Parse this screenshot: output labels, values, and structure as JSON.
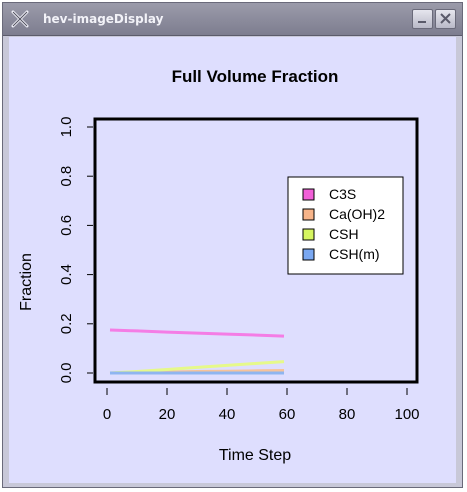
{
  "window": {
    "title": "hev-imageDisplay",
    "app_icon": "x-logo-icon",
    "minimize_icon": "minimize-icon",
    "close_icon": "close-icon"
  },
  "chart_data": {
    "type": "line",
    "title": "Full Volume Fraction",
    "xlabel": "Time Step",
    "ylabel": "Fraction",
    "xlim": [
      0,
      100
    ],
    "ylim": [
      0.0,
      1.0
    ],
    "x_ticks": [
      "0",
      "20",
      "40",
      "60",
      "80",
      "100"
    ],
    "y_ticks": [
      "0.0",
      "0.2",
      "0.4",
      "0.6",
      "0.8",
      "1.0"
    ],
    "legend_placement": "right",
    "grid": false,
    "background": "#dedefe",
    "x": [
      1,
      10,
      20,
      30,
      40,
      50,
      59
    ],
    "series": [
      {
        "name": "C3S",
        "color": "#f47de5",
        "swatch": "#f25fd8",
        "values": [
          0.175,
          0.171,
          0.166,
          0.162,
          0.158,
          0.154,
          0.15
        ]
      },
      {
        "name": "Ca(OH)2",
        "color": "#f6c29a",
        "swatch": "#f7b489",
        "values": [
          0.0,
          0.002,
          0.004,
          0.006,
          0.007,
          0.009,
          0.01
        ]
      },
      {
        "name": "CSH",
        "color": "#e6f98a",
        "swatch": "#d6f560",
        "values": [
          0.0,
          0.006,
          0.014,
          0.023,
          0.031,
          0.039,
          0.046
        ]
      },
      {
        "name": "CSH(m)",
        "color": "#8fb5f0",
        "swatch": "#7aa8f2",
        "values": [
          0.0,
          0.0,
          0.0,
          0.0,
          0.0,
          0.0,
          0.0
        ]
      }
    ]
  }
}
